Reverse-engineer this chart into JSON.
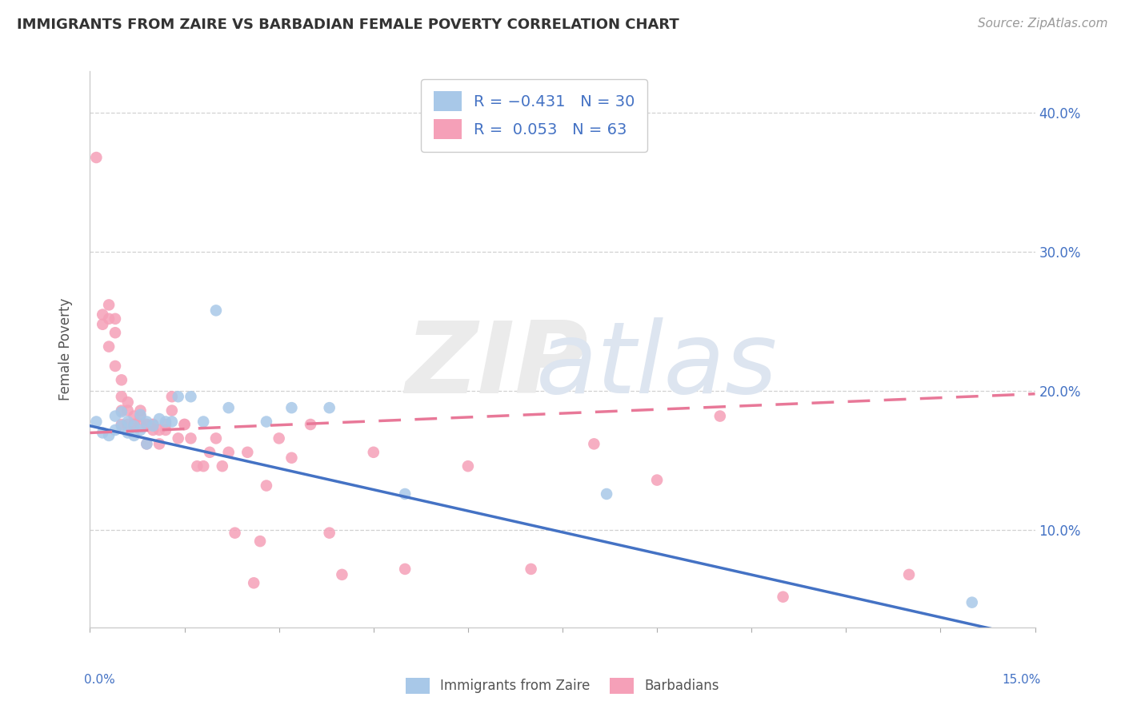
{
  "title": "IMMIGRANTS FROM ZAIRE VS BARBADIAN FEMALE POVERTY CORRELATION CHART",
  "source": "Source: ZipAtlas.com",
  "ylabel": "Female Poverty",
  "x_min": 0.0,
  "x_max": 0.15,
  "y_min": 0.03,
  "y_max": 0.43,
  "y_ticks": [
    0.1,
    0.2,
    0.3,
    0.4
  ],
  "y_tick_labels": [
    "10.0%",
    "20.0%",
    "30.0%",
    "40.0%"
  ],
  "x_tick_minor": [
    0.0,
    0.015,
    0.03,
    0.045,
    0.06,
    0.075,
    0.09,
    0.105,
    0.12,
    0.135,
    0.15
  ],
  "blue_color": "#a8c8e8",
  "pink_color": "#f5a0b8",
  "blue_line_color": "#4472c4",
  "pink_line_color": "#e87898",
  "legend_label1": "Immigrants from Zaire",
  "legend_label2": "Barbadians",
  "blue_trend_y0": 0.175,
  "blue_trend_y1": 0.022,
  "pink_trend_y0": 0.17,
  "pink_trend_y1": 0.198,
  "blue_scatter_x": [
    0.001,
    0.002,
    0.003,
    0.004,
    0.004,
    0.005,
    0.005,
    0.006,
    0.006,
    0.007,
    0.007,
    0.008,
    0.008,
    0.009,
    0.009,
    0.01,
    0.011,
    0.012,
    0.013,
    0.014,
    0.016,
    0.018,
    0.02,
    0.022,
    0.028,
    0.032,
    0.038,
    0.05,
    0.082,
    0.14
  ],
  "blue_scatter_y": [
    0.178,
    0.17,
    0.168,
    0.182,
    0.172,
    0.175,
    0.185,
    0.17,
    0.178,
    0.168,
    0.175,
    0.172,
    0.183,
    0.162,
    0.178,
    0.175,
    0.18,
    0.178,
    0.178,
    0.196,
    0.196,
    0.178,
    0.258,
    0.188,
    0.178,
    0.188,
    0.188,
    0.126,
    0.126,
    0.048
  ],
  "pink_scatter_x": [
    0.001,
    0.002,
    0.002,
    0.003,
    0.003,
    0.003,
    0.004,
    0.004,
    0.004,
    0.005,
    0.005,
    0.005,
    0.005,
    0.006,
    0.006,
    0.006,
    0.007,
    0.007,
    0.007,
    0.008,
    0.008,
    0.008,
    0.009,
    0.009,
    0.009,
    0.01,
    0.01,
    0.01,
    0.011,
    0.011,
    0.012,
    0.012,
    0.013,
    0.013,
    0.014,
    0.015,
    0.015,
    0.016,
    0.017,
    0.018,
    0.019,
    0.02,
    0.021,
    0.022,
    0.023,
    0.025,
    0.026,
    0.027,
    0.028,
    0.03,
    0.032,
    0.035,
    0.038,
    0.04,
    0.045,
    0.05,
    0.06,
    0.07,
    0.08,
    0.09,
    0.1,
    0.11,
    0.13
  ],
  "pink_scatter_y": [
    0.368,
    0.248,
    0.255,
    0.232,
    0.252,
    0.262,
    0.218,
    0.242,
    0.252,
    0.176,
    0.186,
    0.196,
    0.208,
    0.176,
    0.186,
    0.192,
    0.176,
    0.182,
    0.176,
    0.176,
    0.182,
    0.186,
    0.176,
    0.176,
    0.162,
    0.176,
    0.172,
    0.176,
    0.162,
    0.172,
    0.176,
    0.172,
    0.186,
    0.196,
    0.166,
    0.176,
    0.176,
    0.166,
    0.146,
    0.146,
    0.156,
    0.166,
    0.146,
    0.156,
    0.098,
    0.156,
    0.062,
    0.092,
    0.132,
    0.166,
    0.152,
    0.176,
    0.098,
    0.068,
    0.156,
    0.072,
    0.146,
    0.072,
    0.162,
    0.136,
    0.182,
    0.052,
    0.068
  ]
}
